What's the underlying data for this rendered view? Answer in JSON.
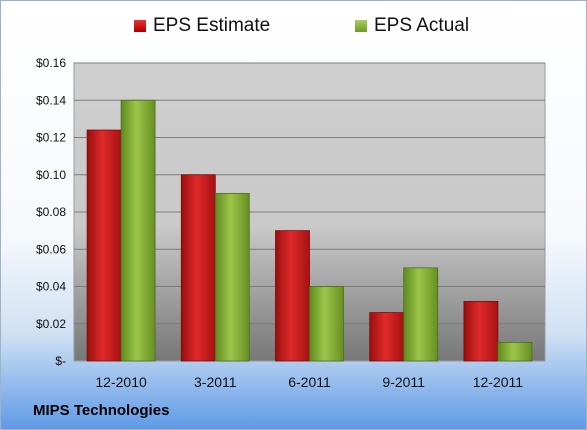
{
  "company": "MIPS Technologies",
  "chart_data": {
    "type": "bar",
    "categories": [
      "12-2010",
      "3-2011",
      "6-2011",
      "9-2011",
      "12-2011"
    ],
    "series": [
      {
        "name": "EPS Estimate",
        "values": [
          0.124,
          0.1,
          0.07,
          0.026,
          0.032
        ],
        "color": "#cc1f1f"
      },
      {
        "name": "EPS Actual",
        "values": [
          0.14,
          0.09,
          0.04,
          0.05,
          0.01
        ],
        "color": "#8cb63c"
      }
    ],
    "yticks": [
      "$-",
      "$0.02",
      "$0.04",
      "$0.06",
      "$0.08",
      "$0.10",
      "$0.12",
      "$0.14",
      "$0.16"
    ],
    "ylim": [
      0,
      0.16
    ],
    "title": "",
    "xlabel": "",
    "ylabel": "",
    "legend": "top",
    "grid": true
  }
}
